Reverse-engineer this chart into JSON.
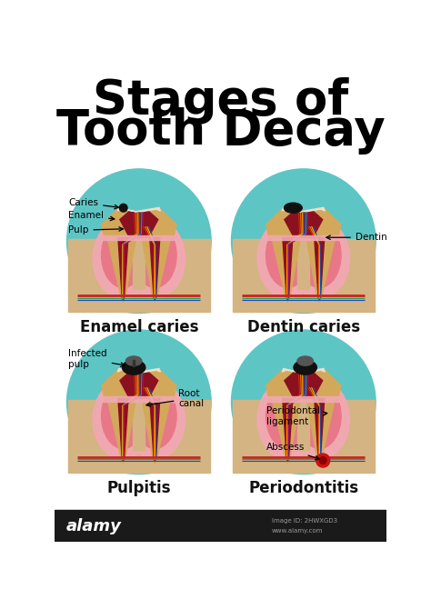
{
  "title_line1": "Stages of",
  "title_line2": "Tooth Decay",
  "title_fontsize": 38,
  "title_color": "#000000",
  "bg_color": "#ffffff",
  "circle_color": "#5ec5c5",
  "bone_color": "#d4b483",
  "gum_outer_color": "#f0a8b0",
  "gum_inner_color": "#e87888",
  "dentin_color": "#d4a85a",
  "pulp_color": "#8B1020",
  "enamel_color": "#e8e0d0",
  "nerve_colors": [
    "#cc3300",
    "#ff8800",
    "#ffcc00",
    "#0055cc",
    "#00aacc",
    "#cc0044"
  ],
  "decay_color": "#111111",
  "abscess_color": "#cc1111",
  "stages": [
    {
      "name": "Enamel caries"
    },
    {
      "name": "Dentin caries"
    },
    {
      "name": "Pulpitis"
    },
    {
      "name": "Periodontitis"
    }
  ],
  "label_fontsize": 7.5,
  "stage_fontsize": 12,
  "alamy_bar_color": "#1a1a1a",
  "alamy_text": "alamy",
  "image_id": "Image ID: 2HWXGD3",
  "website": "www.alamy.com"
}
